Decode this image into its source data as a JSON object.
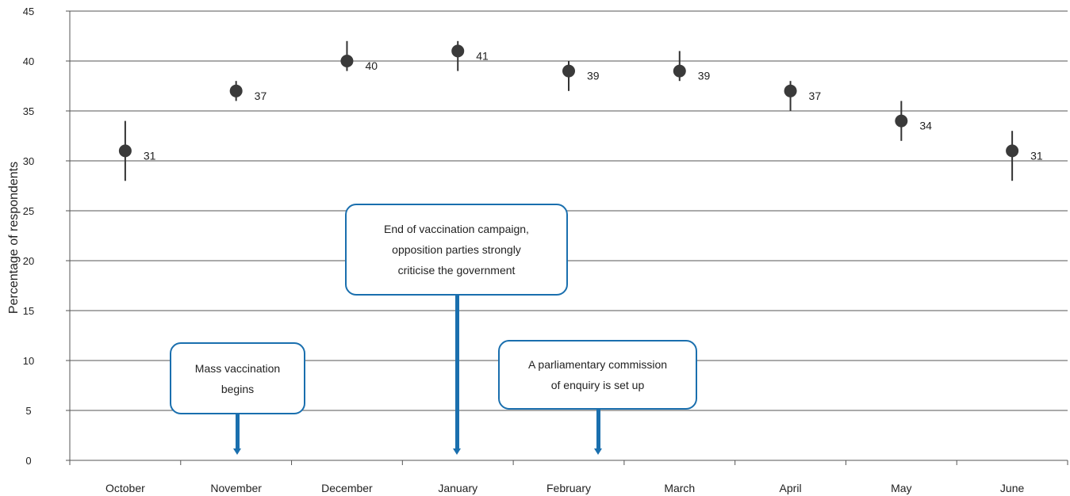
{
  "chart_data": {
    "type": "scatter",
    "title": "",
    "xlabel": "",
    "ylabel": "Percentage of respondents",
    "ylim": [
      0,
      45
    ],
    "yticks": [
      0,
      5,
      10,
      15,
      20,
      25,
      30,
      35,
      40,
      45
    ],
    "grid": true,
    "categories": [
      "October",
      "November",
      "December",
      "January",
      "February",
      "March",
      "April",
      "May",
      "June"
    ],
    "values": [
      31,
      37,
      40,
      41,
      39,
      39,
      37,
      34,
      31
    ],
    "error_low": [
      28,
      36,
      39,
      39,
      37,
      38,
      35,
      32,
      28
    ],
    "error_high": [
      34,
      38,
      42,
      42,
      40,
      41,
      38,
      36,
      33
    ],
    "data_labels": [
      "31",
      "37",
      "40",
      "41",
      "39",
      "39",
      "37",
      "34",
      "31"
    ],
    "marker_color": "#3a3a3a",
    "annotations": [
      {
        "text": "Mass vaccination begins",
        "lines": [
          "Mass vaccination",
          "begins"
        ],
        "category": "November"
      },
      {
        "text": "End of vaccination campaign, opposition parties strongly criticise the government",
        "lines": [
          "End of vaccination campaign,",
          "opposition parties strongly",
          "criticise the government"
        ],
        "category": "January"
      },
      {
        "text": "A parliamentary commission of enquiry is set up",
        "lines": [
          "A parliamentary commission",
          "of enquiry is set up"
        ],
        "category": "February"
      }
    ],
    "annotation_color": "#1a6fae"
  }
}
